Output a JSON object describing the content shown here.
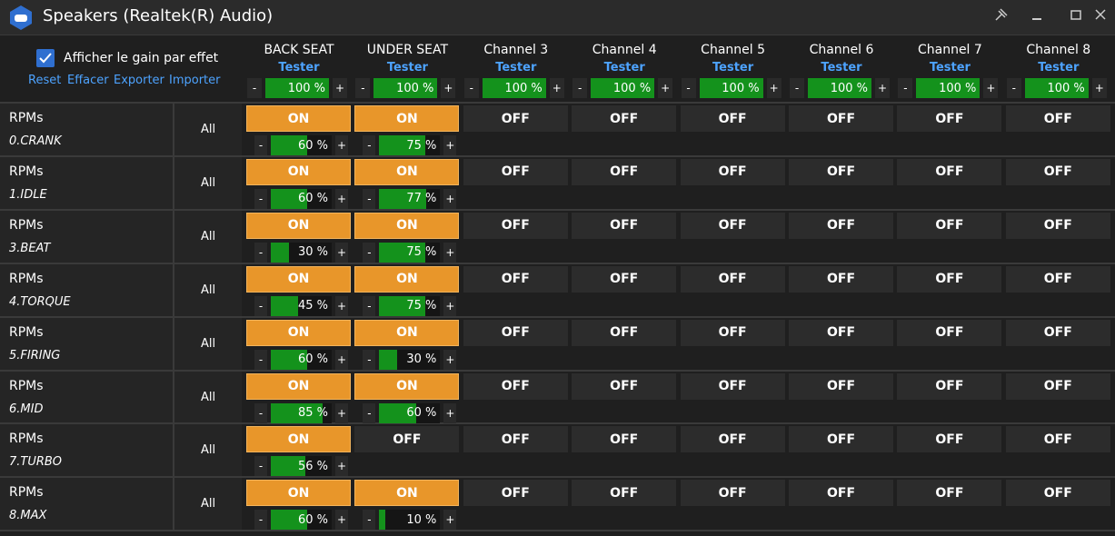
{
  "header": {
    "title": "Speakers (Realtek(R) Audio)",
    "checkbox_label": "Afficher le gain par effet",
    "links": [
      "Reset",
      "Effacer",
      "Exporter",
      "Importer"
    ]
  },
  "controls": {
    "minus": "-",
    "plus": "+"
  },
  "channels": [
    {
      "name": "BACK SEAT",
      "test": "Tester",
      "gain": 100,
      "gain_label": "100 %"
    },
    {
      "name": "UNDER SEAT",
      "test": "Tester",
      "gain": 100,
      "gain_label": "100 %"
    },
    {
      "name": "Channel 3",
      "test": "Tester",
      "gain": 100,
      "gain_label": "100 %"
    },
    {
      "name": "Channel 4",
      "test": "Tester",
      "gain": 100,
      "gain_label": "100 %"
    },
    {
      "name": "Channel 5",
      "test": "Tester",
      "gain": 100,
      "gain_label": "100 %"
    },
    {
      "name": "Channel 6",
      "test": "Tester",
      "gain": 100,
      "gain_label": "100 %"
    },
    {
      "name": "Channel 7",
      "test": "Tester",
      "gain": 100,
      "gain_label": "100 %"
    },
    {
      "name": "Channel 8",
      "test": "Tester",
      "gain": 100,
      "gain_label": "100 %"
    }
  ],
  "rows": [
    {
      "group": "RPMs",
      "name": "0.CRANK",
      "target": "All",
      "cells": [
        {
          "state": "ON",
          "gain": 60,
          "gain_label": "60 %"
        },
        {
          "state": "ON",
          "gain": 75,
          "gain_label": "75 %"
        },
        {
          "state": "OFF"
        },
        {
          "state": "OFF"
        },
        {
          "state": "OFF"
        },
        {
          "state": "OFF"
        },
        {
          "state": "OFF"
        },
        {
          "state": "OFF"
        }
      ]
    },
    {
      "group": "RPMs",
      "name": "1.IDLE",
      "target": "All",
      "cells": [
        {
          "state": "ON",
          "gain": 60,
          "gain_label": "60 %"
        },
        {
          "state": "ON",
          "gain": 77,
          "gain_label": "77 %"
        },
        {
          "state": "OFF"
        },
        {
          "state": "OFF"
        },
        {
          "state": "OFF"
        },
        {
          "state": "OFF"
        },
        {
          "state": "OFF"
        },
        {
          "state": "OFF"
        }
      ]
    },
    {
      "group": "RPMs",
      "name": "3.BEAT",
      "target": "All",
      "cells": [
        {
          "state": "ON",
          "gain": 30,
          "gain_label": "30 %"
        },
        {
          "state": "ON",
          "gain": 75,
          "gain_label": "75 %"
        },
        {
          "state": "OFF"
        },
        {
          "state": "OFF"
        },
        {
          "state": "OFF"
        },
        {
          "state": "OFF"
        },
        {
          "state": "OFF"
        },
        {
          "state": "OFF"
        }
      ]
    },
    {
      "group": "RPMs",
      "name": "4.TORQUE",
      "target": "All",
      "cells": [
        {
          "state": "ON",
          "gain": 45,
          "gain_label": "45 %"
        },
        {
          "state": "ON",
          "gain": 75,
          "gain_label": "75 %"
        },
        {
          "state": "OFF"
        },
        {
          "state": "OFF"
        },
        {
          "state": "OFF"
        },
        {
          "state": "OFF"
        },
        {
          "state": "OFF"
        },
        {
          "state": "OFF"
        }
      ]
    },
    {
      "group": "RPMs",
      "name": "5.FIRING",
      "target": "All",
      "cells": [
        {
          "state": "ON",
          "gain": 60,
          "gain_label": "60 %"
        },
        {
          "state": "ON",
          "gain": 30,
          "gain_label": "30 %"
        },
        {
          "state": "OFF"
        },
        {
          "state": "OFF"
        },
        {
          "state": "OFF"
        },
        {
          "state": "OFF"
        },
        {
          "state": "OFF"
        },
        {
          "state": "OFF"
        }
      ]
    },
    {
      "group": "RPMs",
      "name": "6.MID",
      "target": "All",
      "cells": [
        {
          "state": "ON",
          "gain": 85,
          "gain_label": "85 %"
        },
        {
          "state": "ON",
          "gain": 60,
          "gain_label": "60 %"
        },
        {
          "state": "OFF"
        },
        {
          "state": "OFF"
        },
        {
          "state": "OFF"
        },
        {
          "state": "OFF"
        },
        {
          "state": "OFF"
        },
        {
          "state": "OFF"
        }
      ]
    },
    {
      "group": "RPMs",
      "name": "7.TURBO",
      "target": "All",
      "cells": [
        {
          "state": "ON",
          "gain": 56,
          "gain_label": "56 %"
        },
        {
          "state": "OFF"
        },
        {
          "state": "OFF"
        },
        {
          "state": "OFF"
        },
        {
          "state": "OFF"
        },
        {
          "state": "OFF"
        },
        {
          "state": "OFF"
        },
        {
          "state": "OFF"
        }
      ]
    },
    {
      "group": "RPMs",
      "name": "8.MAX",
      "target": "All",
      "cells": [
        {
          "state": "ON",
          "gain": 60,
          "gain_label": "60 %"
        },
        {
          "state": "ON",
          "gain": 10,
          "gain_label": "10 %"
        },
        {
          "state": "OFF"
        },
        {
          "state": "OFF"
        },
        {
          "state": "OFF"
        },
        {
          "state": "OFF"
        },
        {
          "state": "OFF"
        },
        {
          "state": "OFF"
        }
      ]
    }
  ]
}
